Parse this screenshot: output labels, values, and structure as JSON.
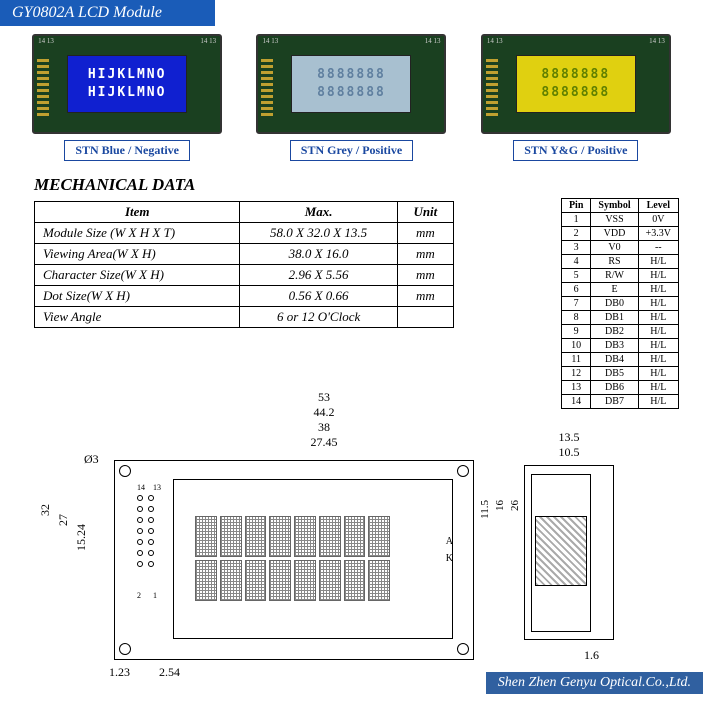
{
  "header": {
    "title": "GY0802A  LCD Module"
  },
  "photos": [
    {
      "screen_class": "lcd-blue",
      "line1": "HIJKLMNO",
      "line2": "HIJKLMNO",
      "caption": "STN Blue / Negative",
      "pin_tl": "14 13",
      "pin_tr": "14 13"
    },
    {
      "screen_class": "lcd-grey",
      "line1": "8888888",
      "line2": "8888888",
      "caption": "STN Grey / Positive",
      "pin_tl": "14 13",
      "pin_tr": "14 13"
    },
    {
      "screen_class": "lcd-yellow",
      "line1": "8888888",
      "line2": "8888888",
      "caption": "STN Y&G / Positive",
      "pin_tl": "14 13",
      "pin_tr": "14 13"
    }
  ],
  "mech": {
    "title": "MECHANICAL DATA",
    "headers": [
      "Item",
      "Max.",
      "Unit"
    ],
    "rows": [
      [
        "Module  Size (W X H X T)",
        "58.0  X  32.0 X  13.5",
        "mm"
      ],
      [
        "Viewing  Area(W X H)",
        "38.0 X 16.0",
        "mm"
      ],
      [
        "Character  Size(W X H)",
        "2.96 X 5.56",
        "mm"
      ],
      [
        "Dot  Size(W X H)",
        "0.56 X 0.66",
        "mm"
      ],
      [
        "View  Angle",
        "6  or  12 O'Clock",
        ""
      ]
    ]
  },
  "pins": {
    "headers": [
      "Pin",
      "Symbol",
      "Level"
    ],
    "rows": [
      [
        "1",
        "VSS",
        "0V"
      ],
      [
        "2",
        "VDD",
        "+3.3V"
      ],
      [
        "3",
        "V0",
        "--"
      ],
      [
        "4",
        "RS",
        "H/L"
      ],
      [
        "5",
        "R/W",
        "H/L"
      ],
      [
        "6",
        "E",
        "H/L"
      ],
      [
        "7",
        "DB0",
        "H/L"
      ],
      [
        "8",
        "DB1",
        "H/L"
      ],
      [
        "9",
        "DB2",
        "H/L"
      ],
      [
        "10",
        "DB3",
        "H/L"
      ],
      [
        "11",
        "DB4",
        "H/L"
      ],
      [
        "12",
        "DB5",
        "H/L"
      ],
      [
        "13",
        "DB6",
        "H/L"
      ],
      [
        "14",
        "DB7",
        "H/L"
      ]
    ]
  },
  "diagram": {
    "dims_h": [
      "53",
      "44.2",
      "38",
      "27.45"
    ],
    "dims_v": [
      "32",
      "27",
      "15.24"
    ],
    "dims_side_h": [
      "13.5",
      "10.5"
    ],
    "dims_side_v": [
      "11.5",
      "16",
      "26"
    ],
    "bottom_dims": [
      "1.23",
      "2.54",
      "1.6"
    ],
    "hole_dia": "Ø3",
    "ak": [
      "A",
      "K"
    ],
    "pin_labels": [
      "14",
      "13",
      "2",
      "1"
    ]
  },
  "footer": {
    "text": "Shen Zhen Genyu Optical.Co.,Ltd."
  },
  "colors": {
    "header_bg": "#1a5cb8",
    "caption_border": "#1a48a0",
    "footer_bg": "#3060a0"
  }
}
